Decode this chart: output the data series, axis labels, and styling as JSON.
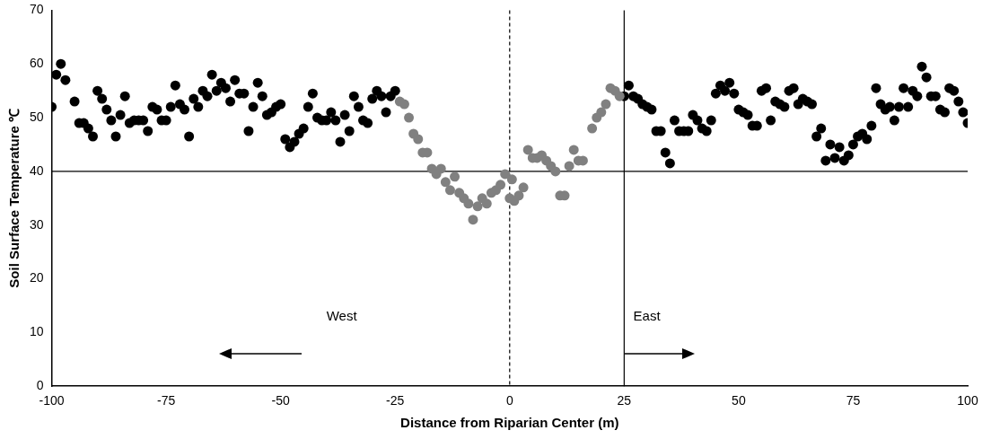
{
  "chart_data": {
    "type": "scatter",
    "xlabel": "Distance from Riparian Center (m)",
    "ylabel": "Soil Surface Temperature ℃",
    "xlim": [
      -100,
      100
    ],
    "xticks": [
      -100,
      -75,
      -50,
      -25,
      0,
      25,
      50,
      75,
      100
    ],
    "ylim": [
      0,
      70
    ],
    "yticks": [
      0,
      10,
      20,
      30,
      40,
      50,
      60,
      70
    ],
    "grid": false,
    "legend": false,
    "marker": "circle",
    "annotations": [
      "West",
      "East"
    ],
    "ref_lines": [
      {
        "axis": "y",
        "value": 40,
        "color": "#000000",
        "line_style": "solid"
      },
      {
        "axis": "x",
        "value": 0,
        "color": "#000000",
        "line_style": "dashed"
      },
      {
        "axis": "x",
        "value": 25,
        "color": "#000000",
        "line_style": "solid"
      }
    ],
    "series": [
      {
        "color": "#000000",
        "x": [
          -100,
          -99,
          -98,
          -97,
          -95,
          -94,
          -93,
          -92,
          -91,
          -90,
          -89,
          -88,
          -87,
          -86,
          -85,
          -84,
          -83,
          -82,
          -81,
          -80,
          -79,
          -78,
          -77,
          -76,
          -75,
          -74,
          -73,
          -72,
          -71,
          -70,
          -69,
          -68,
          -67,
          -66,
          -65,
          -64,
          -63,
          -62,
          -61,
          -60,
          -59,
          -58,
          -57,
          -56,
          -55,
          -54,
          -53,
          -52,
          -51,
          -50,
          -49,
          -48,
          -47,
          -46,
          -45,
          -44,
          -43,
          -42,
          -41,
          -40,
          -39,
          -38,
          -37,
          -36,
          -35,
          -34,
          -33,
          -32,
          -31,
          -30,
          -29,
          -28,
          -27,
          -26,
          -25
        ],
        "values": [
          52,
          58,
          60,
          57,
          53,
          49,
          49,
          48,
          46.5,
          55,
          53.5,
          51.5,
          49.5,
          46.5,
          50.5,
          54,
          49,
          49.5,
          49.5,
          49.5,
          47.5,
          52,
          51.5,
          49.5,
          49.5,
          52,
          56,
          52.5,
          51.5,
          46.5,
          53.5,
          52,
          55,
          54,
          58,
          55,
          56.5,
          55.5,
          53,
          57,
          54.5,
          54.5,
          47.5,
          52,
          56.5,
          54,
          50.5,
          51,
          52,
          52.5,
          46,
          44.5,
          45.5,
          47,
          48,
          52,
          54.5,
          50,
          49.5,
          49.5,
          51,
          49.5,
          45.5,
          50.5,
          47.5,
          54,
          52,
          49.5,
          49,
          53.5,
          55,
          54,
          51,
          54,
          55
        ]
      },
      {
        "color": "#808080",
        "x": [
          -24,
          -23,
          -22,
          -21,
          -20,
          -19,
          -18,
          -17,
          -16,
          -15,
          -14,
          -13,
          -12,
          -11,
          -10,
          -9,
          -8,
          -7,
          -6,
          -5,
          -4,
          -3,
          -2,
          -1,
          0,
          0.5,
          1,
          2,
          3,
          4,
          5,
          6,
          7,
          8,
          9,
          10,
          11,
          12,
          13,
          14,
          15,
          16,
          18,
          19,
          20,
          21,
          22,
          23,
          24
        ],
        "values": [
          53,
          52.5,
          50,
          47,
          46,
          43.5,
          43.5,
          40.5,
          39.5,
          40.5,
          38,
          36.5,
          39,
          36,
          35,
          34,
          31,
          33.5,
          35,
          34,
          36,
          36.5,
          37.5,
          39.5,
          35,
          38.5,
          34.5,
          35.5,
          37,
          44,
          42.5,
          42.5,
          43,
          42,
          41,
          40,
          35.5,
          35.5,
          41,
          44,
          42,
          42,
          48,
          50,
          51,
          52.5,
          55.5,
          55,
          54
        ]
      },
      {
        "color": "#000000",
        "x": [
          25,
          26,
          27,
          28,
          29,
          30,
          31,
          32,
          33,
          34,
          35,
          36,
          37,
          38,
          39,
          40,
          41,
          42,
          43,
          44,
          45,
          46,
          47,
          48,
          49,
          50,
          51,
          52,
          53,
          54,
          55,
          56,
          57,
          58,
          59,
          60,
          61,
          62,
          63,
          64,
          65,
          66,
          67,
          68,
          69,
          70,
          71,
          72,
          73,
          74,
          75,
          76,
          77,
          78,
          79,
          80,
          81,
          82,
          83,
          84,
          85,
          86,
          87,
          88,
          89,
          90,
          91,
          92,
          93,
          94,
          95,
          96,
          97,
          98,
          99,
          100
        ],
        "values": [
          54,
          56,
          54,
          53.5,
          52.5,
          52,
          51.5,
          47.5,
          47.5,
          43.5,
          41.5,
          49.5,
          47.5,
          47.5,
          47.5,
          50.5,
          49.5,
          48,
          47.5,
          49.5,
          54.5,
          56,
          55,
          56.5,
          54.5,
          51.5,
          51,
          50.5,
          48.5,
          48.5,
          55,
          55.5,
          49.5,
          53,
          52.5,
          52,
          55,
          55.5,
          52.5,
          53.5,
          53,
          52.5,
          46.5,
          48,
          42,
          45,
          42.5,
          44.5,
          42,
          43,
          45,
          46.5,
          47,
          46,
          48.5,
          55.5,
          52.5,
          51.5,
          52,
          49.5,
          52,
          55.5,
          52,
          55,
          54,
          59.5,
          57.5,
          54,
          54,
          51.5,
          51,
          55.5,
          55,
          53,
          51,
          49
        ]
      }
    ]
  }
}
